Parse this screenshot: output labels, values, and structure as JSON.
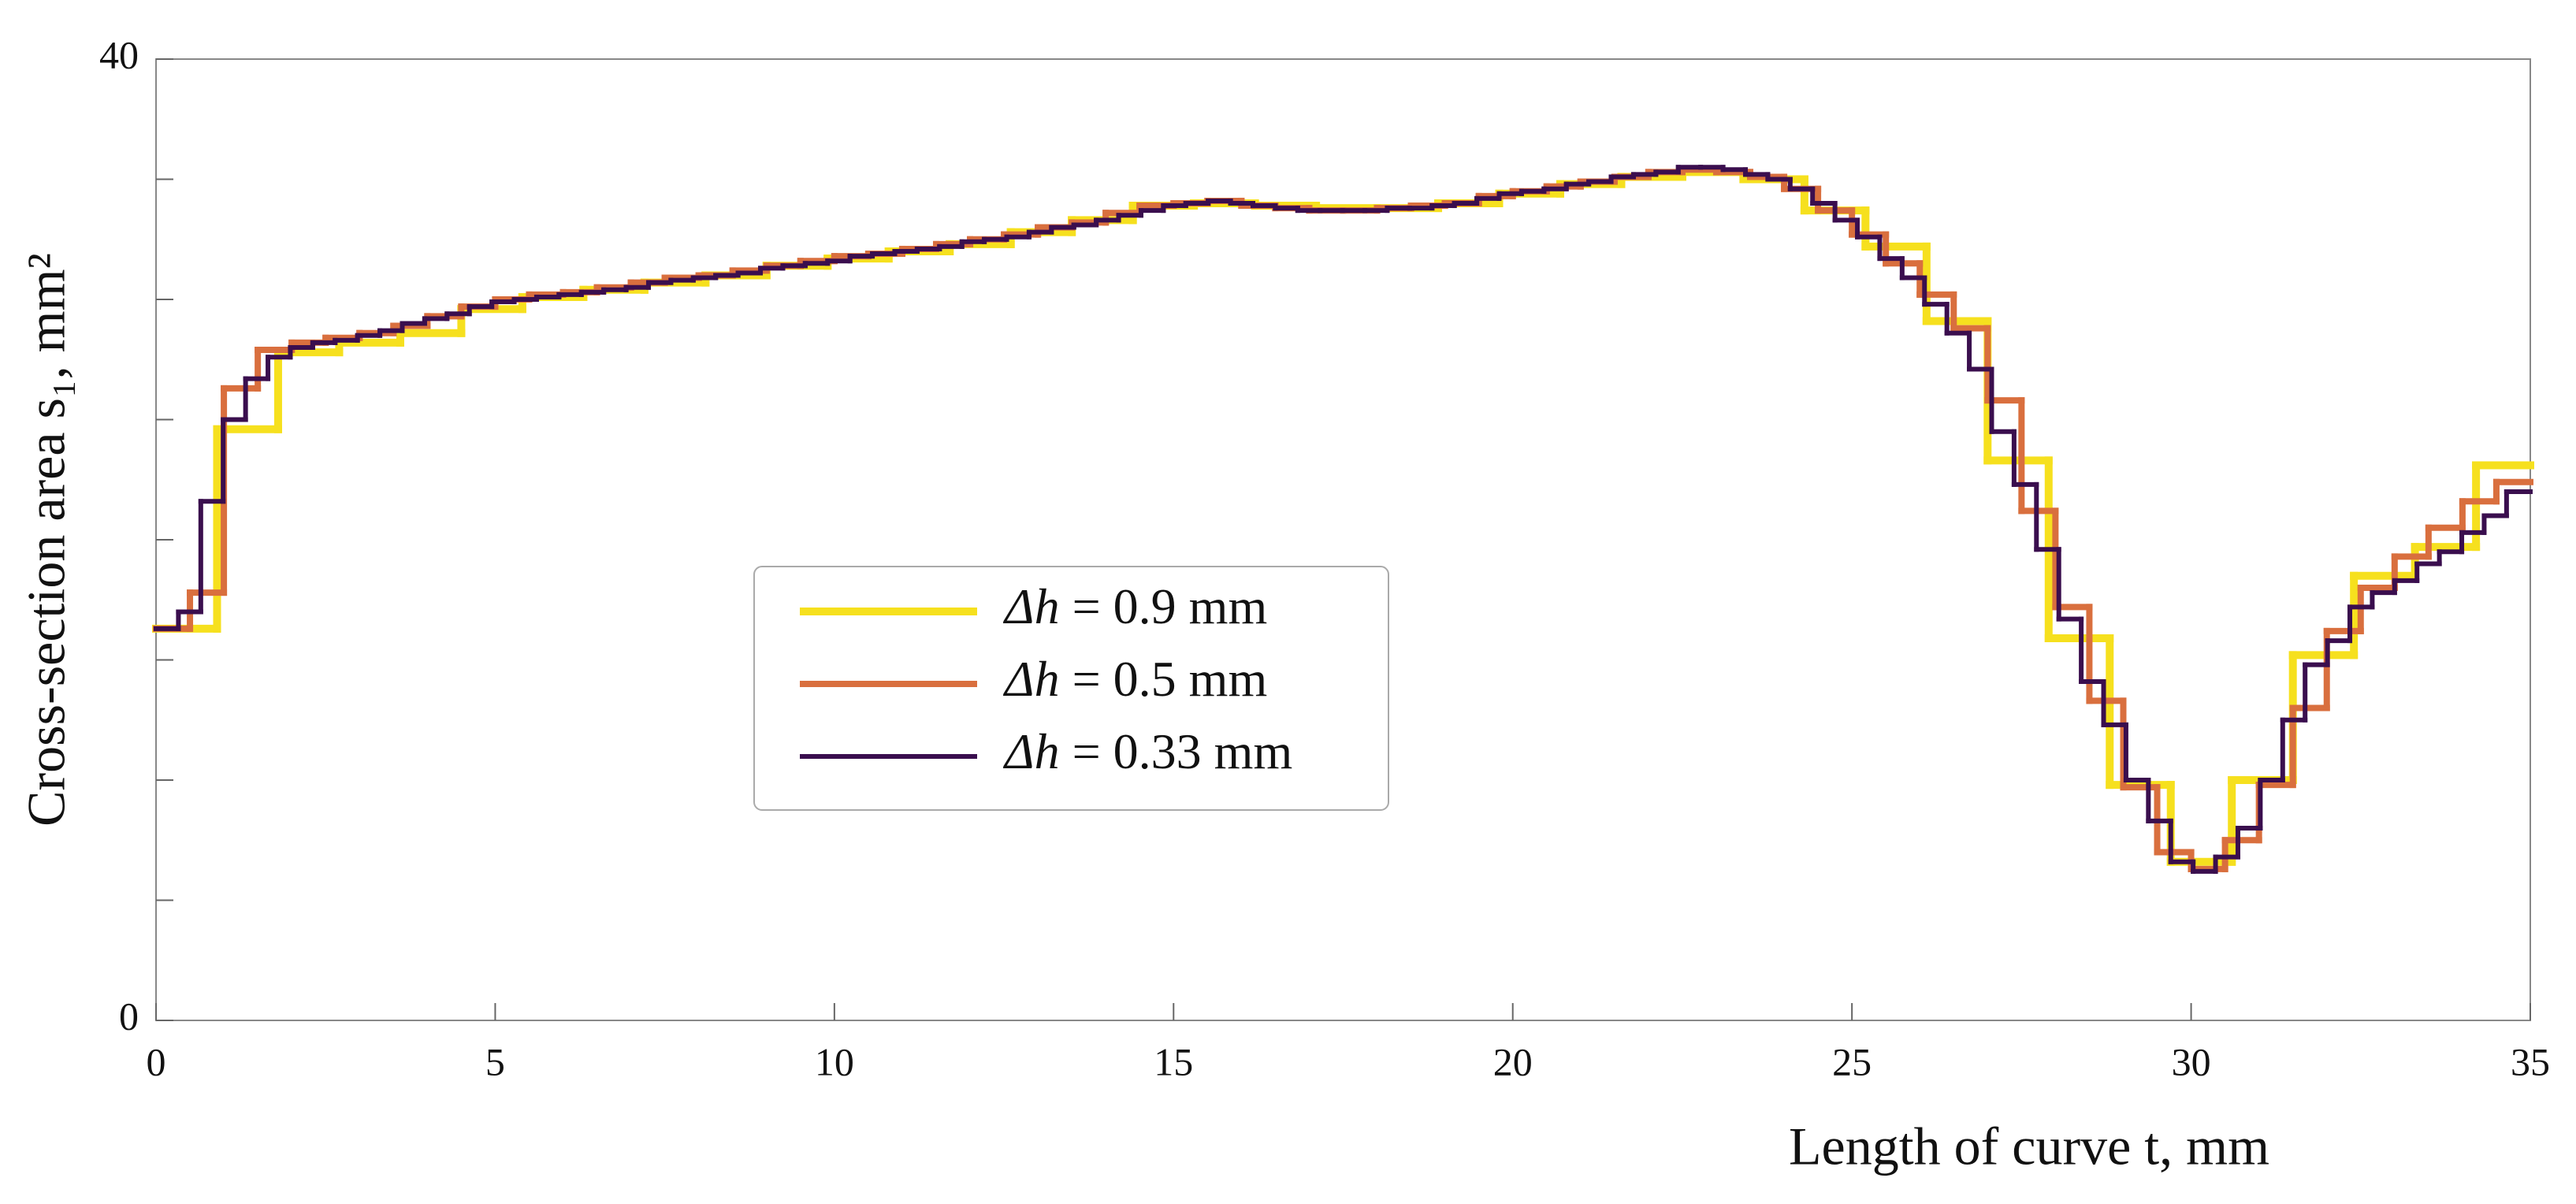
{
  "chart_data": {
    "type": "step",
    "x_label": "Length of curve t, mm",
    "y_label": "Cross-section area s₁, mm²",
    "xlim": [
      0,
      35
    ],
    "ylim": [
      0,
      40
    ],
    "xticks": [
      0,
      5,
      10,
      15,
      20,
      25,
      30,
      35
    ],
    "yticks": [
      0,
      {
        "value": 5,
        "label": null
      },
      {
        "value": 10,
        "label": null
      },
      {
        "value": 15,
        "label": null
      },
      {
        "value": 20,
        "label": null
      },
      {
        "value": 25,
        "label": null
      },
      {
        "value": 30,
        "label": null
      },
      {
        "value": 35,
        "label": null
      },
      40
    ],
    "legend": "center-left",
    "series": [
      {
        "name": "Δh = 0.9 mm",
        "color": "#f6e01e",
        "width": 10,
        "x": [
          0,
          0.9,
          1.8,
          2.7,
          3.6,
          4.5,
          5.4,
          6.3,
          7.2,
          8.1,
          9.0,
          9.9,
          10.8,
          11.7,
          12.6,
          13.5,
          14.4,
          15.3,
          16.2,
          17.1,
          18.0,
          18.9,
          19.8,
          20.7,
          21.6,
          22.5,
          23.4,
          24.3,
          25.2,
          26.1,
          27.0,
          27.9,
          28.8,
          29.7,
          30.6,
          31.5,
          32.4,
          33.3,
          34.2
        ],
        "values": [
          16.3,
          24.6,
          27.8,
          28.2,
          28.6,
          29.6,
          30.1,
          30.4,
          30.7,
          31.0,
          31.4,
          31.7,
          32.0,
          32.3,
          32.8,
          33.3,
          33.9,
          34.0,
          33.9,
          33.8,
          33.8,
          34.0,
          34.4,
          34.8,
          35.1,
          35.3,
          35.0,
          33.7,
          32.2,
          29.1,
          23.3,
          15.9,
          9.8,
          6.6,
          10.0,
          15.2,
          18.5,
          19.7,
          23.1
        ]
      },
      {
        "name": "Δh = 0.5 mm",
        "color": "#d96f3e",
        "width": 8,
        "x": [
          0,
          0.5,
          1.0,
          1.5,
          2.0,
          2.5,
          3.0,
          3.5,
          4.0,
          4.5,
          5.0,
          5.5,
          6.0,
          6.5,
          7.0,
          7.5,
          8.0,
          8.5,
          9.0,
          9.5,
          10.0,
          10.5,
          11.0,
          11.5,
          12.0,
          12.5,
          13.0,
          13.5,
          14.0,
          14.5,
          15.0,
          15.5,
          16.0,
          16.5,
          17.0,
          17.5,
          18.0,
          18.5,
          19.0,
          19.5,
          20.0,
          20.5,
          21.0,
          21.5,
          22.0,
          22.5,
          23.0,
          23.5,
          24.0,
          24.5,
          25.0,
          25.5,
          26.0,
          26.5,
          27.0,
          27.5,
          28.0,
          28.5,
          29.0,
          29.5,
          30.0,
          30.5,
          31.0,
          31.5,
          32.0,
          32.5,
          33.0,
          33.5,
          34.0,
          34.5
        ],
        "values": [
          16.3,
          17.8,
          26.3,
          27.9,
          28.2,
          28.4,
          28.6,
          28.9,
          29.3,
          29.7,
          30.0,
          30.2,
          30.3,
          30.5,
          30.7,
          30.9,
          31.0,
          31.2,
          31.4,
          31.6,
          31.8,
          31.9,
          32.1,
          32.3,
          32.5,
          32.7,
          33.0,
          33.2,
          33.6,
          33.9,
          34.0,
          34.1,
          33.9,
          33.8,
          33.7,
          33.7,
          33.8,
          33.9,
          34.0,
          34.3,
          34.5,
          34.7,
          34.9,
          35.1,
          35.3,
          35.4,
          35.3,
          35.1,
          34.6,
          33.7,
          32.7,
          31.5,
          30.2,
          28.8,
          25.8,
          21.2,
          17.2,
          13.3,
          9.7,
          7.0,
          6.3,
          7.5,
          9.8,
          13.0,
          16.2,
          18.0,
          19.3,
          20.5,
          21.6,
          22.4
        ]
      },
      {
        "name": "Δh = 0.33 mm",
        "color": "#3a0e4e",
        "width": 6,
        "x": [
          0,
          0.33,
          0.66,
          0.99,
          1.32,
          1.65,
          1.98,
          2.31,
          2.64,
          2.97,
          3.3,
          3.63,
          3.96,
          4.29,
          4.62,
          4.95,
          5.28,
          5.61,
          5.94,
          6.27,
          6.6,
          6.93,
          7.26,
          7.59,
          7.92,
          8.25,
          8.58,
          8.91,
          9.24,
          9.57,
          9.9,
          10.23,
          10.56,
          10.89,
          11.22,
          11.55,
          11.88,
          12.21,
          12.54,
          12.87,
          13.2,
          13.53,
          13.86,
          14.19,
          14.52,
          14.85,
          15.18,
          15.51,
          15.84,
          16.17,
          16.5,
          16.83,
          17.16,
          17.49,
          17.82,
          18.15,
          18.48,
          18.81,
          19.14,
          19.47,
          19.8,
          20.13,
          20.46,
          20.79,
          21.12,
          21.45,
          21.78,
          22.11,
          22.44,
          22.77,
          23.1,
          23.43,
          23.76,
          24.09,
          24.42,
          24.75,
          25.08,
          25.41,
          25.74,
          26.07,
          26.4,
          26.73,
          27.06,
          27.39,
          27.72,
          28.05,
          28.38,
          28.71,
          29.04,
          29.37,
          29.7,
          30.03,
          30.36,
          30.69,
          31.02,
          31.35,
          31.68,
          32.01,
          32.34,
          32.67,
          33.0,
          33.33,
          33.66,
          33.99,
          34.32,
          34.65
        ],
        "values": [
          16.3,
          17.0,
          21.6,
          25.0,
          26.7,
          27.6,
          28.0,
          28.2,
          28.3,
          28.5,
          28.7,
          29.0,
          29.2,
          29.4,
          29.7,
          29.9,
          30.0,
          30.1,
          30.2,
          30.3,
          30.4,
          30.5,
          30.7,
          30.8,
          30.9,
          31.0,
          31.1,
          31.3,
          31.4,
          31.5,
          31.6,
          31.8,
          31.9,
          32.0,
          32.1,
          32.2,
          32.4,
          32.5,
          32.6,
          32.8,
          33.0,
          33.1,
          33.3,
          33.5,
          33.7,
          33.9,
          34.0,
          34.1,
          34.0,
          33.9,
          33.8,
          33.7,
          33.7,
          33.7,
          33.7,
          33.8,
          33.8,
          33.9,
          34.0,
          34.2,
          34.4,
          34.5,
          34.6,
          34.8,
          34.9,
          35.1,
          35.2,
          35.3,
          35.5,
          35.5,
          35.4,
          35.2,
          35.0,
          34.6,
          34.0,
          33.3,
          32.6,
          31.7,
          30.9,
          29.8,
          28.6,
          27.1,
          24.5,
          22.3,
          19.6,
          16.7,
          14.1,
          12.3,
          10.0,
          8.3,
          6.6,
          6.2,
          6.8,
          8.0,
          10.0,
          12.5,
          14.8,
          15.8,
          17.2,
          17.8,
          18.3,
          19.0,
          19.5,
          20.3,
          21.0,
          22.0
        ]
      }
    ]
  }
}
